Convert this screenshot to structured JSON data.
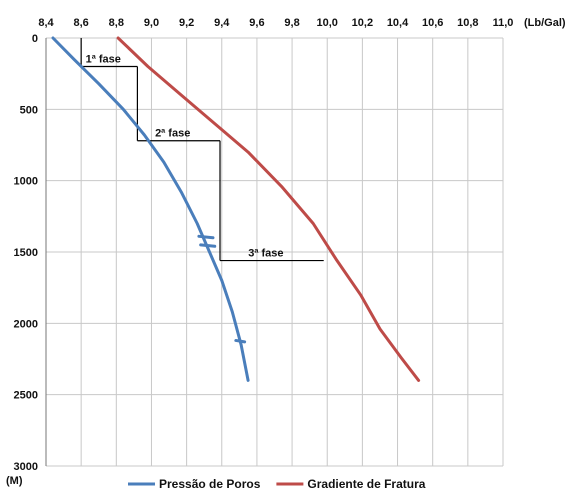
{
  "chart_data": {
    "type": "line",
    "x_unit": "(Lb/Gal)",
    "y_unit": "(M)",
    "x_ticks": [
      "8,4",
      "8,6",
      "8,8",
      "9,0",
      "9,2",
      "9,4",
      "9,6",
      "9,8",
      "10,0",
      "10,2",
      "10,4",
      "10,6",
      "10,8",
      "11,0"
    ],
    "y_ticks": [
      "0",
      "500",
      "1000",
      "1500",
      "2000",
      "2500",
      "3000"
    ],
    "xlim": [
      8.4,
      11.0
    ],
    "ylim": [
      0,
      3000
    ],
    "y_inverted": true,
    "grid": true,
    "legend_position": "bottom",
    "series": [
      {
        "name": "Pressão de Poros",
        "color": "#4a7ebb",
        "points": [
          [
            8.44,
            0
          ],
          [
            8.56,
            150
          ],
          [
            8.7,
            320
          ],
          [
            8.84,
            500
          ],
          [
            8.96,
            680
          ],
          [
            9.07,
            870
          ],
          [
            9.17,
            1080
          ],
          [
            9.26,
            1300
          ],
          [
            9.33,
            1500
          ],
          [
            9.4,
            1700
          ],
          [
            9.46,
            1920
          ],
          [
            9.51,
            2150
          ],
          [
            9.55,
            2400
          ]
        ],
        "marks": [
          {
            "segment": [
              [
                9.27,
                1390
              ],
              [
                9.35,
                1400
              ]
            ]
          },
          {
            "segment": [
              [
                9.28,
                1450
              ],
              [
                9.36,
                1460
              ]
            ]
          },
          {
            "segment": [
              [
                9.48,
                2120
              ],
              [
                9.53,
                2130
              ]
            ]
          }
        ]
      },
      {
        "name": "Gradiente de Fratura",
        "color": "#be4b48",
        "points": [
          [
            8.81,
            0
          ],
          [
            8.98,
            200
          ],
          [
            9.17,
            400
          ],
          [
            9.36,
            600
          ],
          [
            9.55,
            800
          ],
          [
            9.74,
            1040
          ],
          [
            9.92,
            1300
          ],
          [
            10.05,
            1550
          ],
          [
            10.19,
            1800
          ],
          [
            10.3,
            2040
          ],
          [
            10.42,
            2240
          ],
          [
            10.52,
            2400
          ]
        ]
      }
    ],
    "phases": [
      {
        "label": "1ª fase",
        "depth_top": 0,
        "depth_bottom": 200,
        "weight": 8.6,
        "next_weight": 8.92
      },
      {
        "label": "2ª fase",
        "depth_top": 200,
        "depth_bottom": 720,
        "weight": 8.92,
        "next_weight": 9.39
      },
      {
        "label": "3ª fase",
        "depth_top": 720,
        "depth_bottom": 1560,
        "weight": 9.39,
        "next_weight": 9.98
      }
    ]
  }
}
